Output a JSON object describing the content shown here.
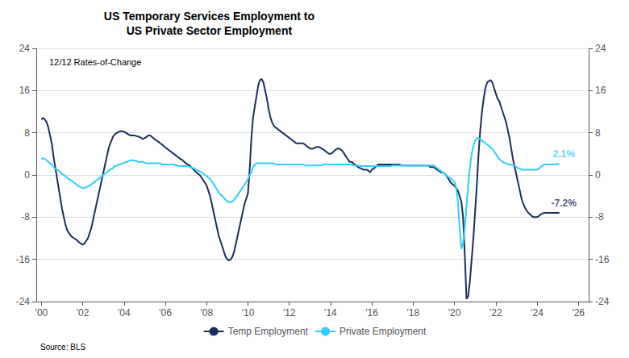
{
  "chart_data": {
    "type": "line",
    "title": "US Temporary Services Employment to\nUS Private Sector Employment",
    "subtitle": "12/12 Rates-of-Change",
    "source": "Source: BLS",
    "x": [
      2000.0,
      2000.083,
      2000.167,
      2000.25,
      2000.333,
      2000.417,
      2000.5,
      2000.583,
      2000.667,
      2000.75,
      2000.833,
      2000.917,
      2001.0,
      2001.083,
      2001.167,
      2001.25,
      2001.333,
      2001.417,
      2001.5,
      2001.583,
      2001.667,
      2001.75,
      2001.833,
      2001.917,
      2002.0,
      2002.083,
      2002.167,
      2002.25,
      2002.333,
      2002.417,
      2002.5,
      2002.583,
      2002.667,
      2002.75,
      2002.833,
      2002.917,
      2003.0,
      2003.083,
      2003.167,
      2003.25,
      2003.333,
      2003.417,
      2003.5,
      2003.583,
      2003.667,
      2003.75,
      2003.833,
      2003.917,
      2004.0,
      2004.083,
      2004.167,
      2004.25,
      2004.333,
      2004.417,
      2004.5,
      2004.583,
      2004.667,
      2004.75,
      2004.833,
      2004.917,
      2005.0,
      2005.083,
      2005.167,
      2005.25,
      2005.333,
      2005.417,
      2005.5,
      2005.583,
      2005.667,
      2005.75,
      2005.833,
      2005.917,
      2006.0,
      2006.083,
      2006.167,
      2006.25,
      2006.333,
      2006.417,
      2006.5,
      2006.583,
      2006.667,
      2006.75,
      2006.833,
      2006.917,
      2007.0,
      2007.083,
      2007.167,
      2007.25,
      2007.333,
      2007.417,
      2007.5,
      2007.583,
      2007.667,
      2007.75,
      2007.833,
      2007.917,
      2008.0,
      2008.083,
      2008.167,
      2008.25,
      2008.333,
      2008.417,
      2008.5,
      2008.583,
      2008.667,
      2008.75,
      2008.833,
      2008.917,
      2009.0,
      2009.083,
      2009.167,
      2009.25,
      2009.333,
      2009.417,
      2009.5,
      2009.583,
      2009.667,
      2009.75,
      2009.833,
      2009.917,
      2010.0,
      2010.083,
      2010.167,
      2010.25,
      2010.333,
      2010.417,
      2010.5,
      2010.583,
      2010.667,
      2010.75,
      2010.833,
      2010.917,
      2011.0,
      2011.083,
      2011.167,
      2011.25,
      2011.333,
      2011.417,
      2011.5,
      2011.583,
      2011.667,
      2011.75,
      2011.833,
      2011.917,
      2012.0,
      2012.083,
      2012.167,
      2012.25,
      2012.333,
      2012.417,
      2012.5,
      2012.583,
      2012.667,
      2012.75,
      2012.833,
      2012.917,
      2013.0,
      2013.083,
      2013.167,
      2013.25,
      2013.333,
      2013.417,
      2013.5,
      2013.583,
      2013.667,
      2013.75,
      2013.833,
      2013.917,
      2014.0,
      2014.083,
      2014.167,
      2014.25,
      2014.333,
      2014.417,
      2014.5,
      2014.583,
      2014.667,
      2014.75,
      2014.833,
      2014.917,
      2015.0,
      2015.083,
      2015.167,
      2015.25,
      2015.333,
      2015.417,
      2015.5,
      2015.583,
      2015.667,
      2015.75,
      2015.833,
      2015.917,
      2016.0,
      2016.083,
      2016.167,
      2016.25,
      2016.333,
      2016.417,
      2016.5,
      2016.583,
      2016.667,
      2016.75,
      2016.833,
      2016.917,
      2017.0,
      2017.083,
      2017.167,
      2017.25,
      2017.333,
      2017.417,
      2017.5,
      2017.583,
      2017.667,
      2017.75,
      2017.833,
      2017.917,
      2018.0,
      2018.083,
      2018.167,
      2018.25,
      2018.333,
      2018.417,
      2018.5,
      2018.583,
      2018.667,
      2018.75,
      2018.833,
      2018.917,
      2019.0,
      2019.083,
      2019.167,
      2019.25,
      2019.333,
      2019.417,
      2019.5,
      2019.583,
      2019.667,
      2019.75,
      2019.833,
      2019.917,
      2020.0,
      2020.083,
      2020.167,
      2020.25,
      2020.333,
      2020.417,
      2020.5,
      2020.583,
      2020.667,
      2020.75,
      2020.833,
      2020.917,
      2021.0,
      2021.083,
      2021.167,
      2021.25,
      2021.333,
      2021.417,
      2021.5,
      2021.583,
      2021.667,
      2021.75,
      2021.833,
      2021.917,
      2022.0,
      2022.083,
      2022.167,
      2022.25,
      2022.333,
      2022.417,
      2022.5,
      2022.583,
      2022.667,
      2022.75,
      2022.833,
      2022.917,
      2023.0,
      2023.083,
      2023.167,
      2023.25,
      2023.333,
      2023.417,
      2023.5,
      2023.583,
      2023.667,
      2023.75,
      2023.833,
      2023.917,
      2024.0,
      2024.083,
      2024.167,
      2024.25,
      2024.333,
      2024.417,
      2024.5,
      2024.583,
      2024.667,
      2024.75,
      2024.833,
      2024.917,
      2025.0,
      2025.083
    ],
    "series": [
      {
        "name": "Temp Employment",
        "color": "#1a2f5a",
        "values": [
          10.5,
          10.8,
          10.5,
          10.0,
          9.0,
          7.5,
          6.0,
          3.5,
          1.5,
          -0.5,
          -2.5,
          -4.5,
          -6.5,
          -8.0,
          -9.5,
          -10.5,
          -11.0,
          -11.5,
          -11.8,
          -12.0,
          -12.2,
          -12.5,
          -12.8,
          -13.0,
          -13.2,
          -13.0,
          -12.5,
          -12.0,
          -11.0,
          -10.0,
          -8.5,
          -7.0,
          -5.5,
          -4.0,
          -2.5,
          -1.0,
          0.5,
          2.0,
          3.5,
          5.0,
          6.0,
          6.8,
          7.5,
          7.8,
          8.0,
          8.2,
          8.3,
          8.3,
          8.2,
          8.0,
          7.8,
          7.6,
          7.5,
          7.5,
          7.5,
          7.4,
          7.3,
          7.2,
          7.0,
          6.8,
          7.0,
          7.2,
          7.5,
          7.5,
          7.3,
          7.0,
          6.7,
          6.5,
          6.3,
          6.0,
          5.8,
          5.5,
          5.2,
          5.0,
          4.7,
          4.5,
          4.2,
          4.0,
          3.7,
          3.5,
          3.2,
          3.0,
          2.8,
          2.5,
          2.2,
          2.0,
          1.8,
          1.5,
          1.2,
          0.8,
          0.5,
          0.2,
          0.0,
          -0.5,
          -1.0,
          -1.5,
          -2.0,
          -3.0,
          -4.0,
          -5.5,
          -7.0,
          -8.5,
          -10.0,
          -11.5,
          -12.5,
          -13.5,
          -14.5,
          -15.5,
          -16.0,
          -16.2,
          -16.0,
          -15.5,
          -14.5,
          -13.0,
          -11.5,
          -10.0,
          -8.5,
          -7.0,
          -5.5,
          -4.5,
          -3.5,
          1.0,
          7.0,
          11.0,
          13.0,
          15.0,
          17.0,
          18.0,
          18.2,
          17.5,
          16.0,
          14.5,
          12.5,
          11.0,
          10.0,
          9.3,
          9.0,
          8.8,
          8.5,
          8.3,
          8.0,
          7.8,
          7.5,
          7.3,
          7.0,
          6.8,
          6.5,
          6.3,
          6.0,
          6.0,
          6.0,
          6.0,
          6.0,
          5.8,
          5.5,
          5.3,
          5.0,
          5.0,
          5.0,
          5.2,
          5.3,
          5.3,
          5.2,
          5.0,
          4.8,
          4.5,
          4.3,
          4.0,
          4.0,
          4.2,
          4.5,
          4.8,
          5.0,
          5.0,
          4.8,
          4.5,
          4.0,
          3.5,
          3.0,
          2.5,
          2.5,
          2.3,
          2.0,
          1.8,
          1.5,
          1.3,
          1.2,
          1.0,
          1.0,
          1.0,
          0.8,
          0.5,
          1.0,
          1.2,
          1.5,
          1.8,
          2.0,
          2.0,
          2.0,
          2.0,
          2.0,
          2.0,
          2.0,
          2.0,
          2.0,
          2.0,
          2.0,
          2.0,
          2.0,
          1.8,
          1.8,
          1.8,
          1.8,
          1.8,
          1.8,
          1.8,
          1.8,
          1.8,
          1.8,
          1.8,
          1.8,
          1.8,
          1.8,
          1.8,
          1.8,
          1.8,
          1.5,
          1.5,
          1.5,
          1.2,
          1.0,
          0.8,
          0.5,
          0.5,
          0.3,
          0.0,
          -0.5,
          -1.0,
          -1.5,
          -1.8,
          -2.0,
          -2.5,
          -3.0,
          -4.0,
          -5.0,
          -8.0,
          -15.0,
          -23.5,
          -23.0,
          -20.0,
          -16.0,
          -12.0,
          -7.0,
          -2.0,
          4.0,
          8.5,
          12.0,
          14.5,
          16.5,
          17.5,
          17.8,
          18.0,
          17.5,
          16.5,
          15.5,
          14.5,
          14.0,
          13.0,
          12.0,
          11.0,
          10.0,
          8.5,
          7.0,
          5.0,
          3.0,
          1.5,
          0.0,
          -1.5,
          -3.0,
          -4.5,
          -5.5,
          -6.2,
          -6.8,
          -7.2,
          -7.5,
          -7.8,
          -8.0,
          -8.0,
          -8.0,
          -7.8,
          -7.5,
          -7.3,
          -7.2,
          -7.2,
          -7.2,
          -7.2,
          -7.2,
          -7.2,
          -7.2,
          -7.2,
          -7.2,
          -7.2
        ]
      },
      {
        "name": "Private Employment",
        "color": "#33ccff",
        "values": [
          3.0,
          3.2,
          3.0,
          2.8,
          2.5,
          2.2,
          2.0,
          1.5,
          1.2,
          1.0,
          0.8,
          0.5,
          0.2,
          0.0,
          -0.3,
          -0.5,
          -0.8,
          -1.0,
          -1.2,
          -1.5,
          -1.7,
          -2.0,
          -2.2,
          -2.3,
          -2.5,
          -2.5,
          -2.3,
          -2.2,
          -2.0,
          -1.8,
          -1.5,
          -1.3,
          -1.0,
          -0.8,
          -0.5,
          -0.3,
          0.0,
          0.3,
          0.5,
          0.8,
          1.0,
          1.2,
          1.5,
          1.7,
          1.8,
          2.0,
          2.0,
          2.2,
          2.3,
          2.5,
          2.5,
          2.7,
          2.8,
          2.8,
          2.7,
          2.7,
          2.5,
          2.5,
          2.5,
          2.5,
          2.3,
          2.2,
          2.2,
          2.2,
          2.2,
          2.2,
          2.2,
          2.2,
          2.2,
          2.2,
          2.0,
          2.0,
          2.0,
          2.0,
          2.0,
          2.0,
          2.0,
          2.0,
          1.8,
          1.8,
          1.7,
          1.7,
          1.7,
          1.7,
          1.7,
          1.7,
          1.5,
          1.5,
          1.3,
          1.2,
          1.0,
          0.8,
          0.7,
          0.5,
          0.3,
          0.0,
          -0.2,
          -0.5,
          -0.8,
          -1.2,
          -1.7,
          -2.2,
          -2.8,
          -3.3,
          -3.7,
          -4.0,
          -4.3,
          -4.7,
          -5.0,
          -5.2,
          -5.2,
          -5.0,
          -4.7,
          -4.3,
          -3.8,
          -3.3,
          -2.8,
          -2.3,
          -1.8,
          -1.3,
          -0.8,
          0.0,
          0.5,
          1.5,
          2.0,
          2.2,
          2.2,
          2.2,
          2.2,
          2.2,
          2.2,
          2.2,
          2.2,
          2.2,
          2.2,
          2.2,
          2.0,
          2.0,
          2.0,
          2.0,
          2.0,
          2.0,
          2.0,
          2.0,
          2.0,
          2.0,
          2.0,
          2.0,
          2.0,
          2.0,
          2.0,
          2.0,
          2.0,
          1.8,
          1.8,
          1.8,
          1.8,
          1.8,
          1.8,
          1.8,
          1.8,
          1.8,
          1.8,
          1.8,
          2.0,
          2.0,
          2.0,
          2.0,
          2.0,
          2.0,
          2.0,
          2.0,
          2.0,
          2.0,
          2.0,
          2.0,
          2.0,
          2.0,
          2.0,
          2.0,
          2.0,
          1.8,
          1.8,
          1.8,
          1.8,
          1.7,
          1.7,
          1.7,
          1.7,
          1.7,
          1.7,
          1.7,
          1.7,
          1.7,
          1.7,
          1.7,
          1.7,
          1.7,
          1.7,
          1.7,
          1.7,
          1.7,
          1.7,
          1.7,
          1.8,
          1.8,
          1.8,
          1.8,
          1.8,
          1.8,
          1.8,
          1.8,
          1.8,
          1.8,
          1.8,
          1.8,
          1.8,
          1.8,
          1.8,
          1.8,
          1.8,
          1.8,
          1.8,
          1.8,
          1.8,
          1.8,
          1.8,
          1.8,
          1.8,
          1.5,
          1.3,
          1.0,
          0.8,
          0.5,
          0.3,
          0.0,
          -0.3,
          -0.5,
          -0.7,
          -1.0,
          -1.3,
          -2.5,
          -5.0,
          -10.0,
          -14.0,
          -13.0,
          -10.0,
          -6.0,
          -2.0,
          1.5,
          4.0,
          5.5,
          6.5,
          7.0,
          7.0,
          6.8,
          6.5,
          6.3,
          6.0,
          5.8,
          5.5,
          5.2,
          5.0,
          4.5,
          4.0,
          3.5,
          3.0,
          2.8,
          2.5,
          2.3,
          2.2,
          2.0,
          2.0,
          2.0,
          1.8,
          1.8,
          1.5,
          1.3,
          1.2,
          1.0,
          1.0,
          1.0,
          1.0,
          1.0,
          1.0,
          1.0,
          1.0,
          1.0,
          1.0,
          1.2,
          1.5,
          1.7,
          2.0,
          2.0,
          2.0,
          2.0,
          2.0,
          2.0,
          2.0,
          2.0,
          2.1,
          2.1
        ]
      }
    ],
    "annotations": [
      {
        "text": "-7.2%",
        "x": 2025.3,
        "y": -7.2,
        "color": "#1a2f5a"
      },
      {
        "text": "2.1%",
        "x": 2025.3,
        "y": 2.1,
        "color": "#33ccff"
      }
    ],
    "xlim": [
      1999.75,
      2026.5
    ],
    "xticks": [
      {
        "value": 2000,
        "label": "'00"
      },
      {
        "value": 2002,
        "label": "'02"
      },
      {
        "value": 2004,
        "label": "'04"
      },
      {
        "value": 2006,
        "label": "'06"
      },
      {
        "value": 2008,
        "label": "'08"
      },
      {
        "value": 2010,
        "label": "'10"
      },
      {
        "value": 2012,
        "label": "'12"
      },
      {
        "value": 2014,
        "label": "'14"
      },
      {
        "value": 2016,
        "label": "'16"
      },
      {
        "value": 2018,
        "label": "'18"
      },
      {
        "value": 2020,
        "label": "'20"
      },
      {
        "value": 2022,
        "label": "'22"
      },
      {
        "value": 2024,
        "label": "'24"
      },
      {
        "value": 2026,
        "label": "'26"
      }
    ],
    "ylim": [
      -24,
      24
    ],
    "yticks": [
      -24,
      -16,
      -8,
      0,
      8,
      16,
      24
    ],
    "y2lim": [
      -24,
      24
    ],
    "y2ticks": [
      -24,
      -16,
      -8,
      0,
      8,
      16,
      24
    ],
    "grid": true,
    "legend": "bottom"
  }
}
